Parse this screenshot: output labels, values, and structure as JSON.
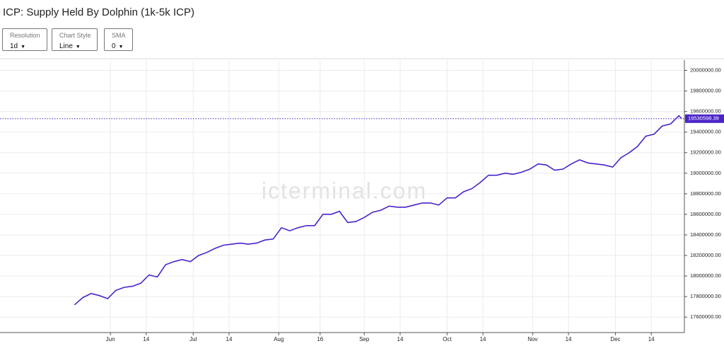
{
  "title": "ICP: Supply Held By Dolphin (1k-5k ICP)",
  "controls": [
    {
      "label": "Resolution",
      "value": "1d"
    },
    {
      "label": "Chart Style",
      "value": "Line"
    },
    {
      "label": "SMA",
      "value": "0"
    }
  ],
  "chart_data": {
    "type": "line",
    "watermark": "icterminal.com",
    "x": [
      "05-19",
      "05-22",
      "05-25",
      "05-28",
      "05-31",
      "06-03",
      "06-06",
      "06-09",
      "06-12",
      "06-15",
      "06-18",
      "06-21",
      "06-24",
      "06-27",
      "06-30",
      "07-03",
      "07-06",
      "07-09",
      "07-12",
      "07-15",
      "07-18",
      "07-21",
      "07-24",
      "07-27",
      "07-30",
      "08-02",
      "08-05",
      "08-08",
      "08-11",
      "08-14",
      "08-17",
      "08-20",
      "08-23",
      "08-26",
      "08-29",
      "09-01",
      "09-04",
      "09-07",
      "09-10",
      "09-13",
      "09-16",
      "09-19",
      "09-22",
      "09-25",
      "09-28",
      "10-01",
      "10-04",
      "10-07",
      "10-10",
      "10-13",
      "10-16",
      "10-19",
      "10-22",
      "10-25",
      "10-28",
      "10-31",
      "11-03",
      "11-06",
      "11-09",
      "11-12",
      "11-15",
      "11-18",
      "11-21",
      "11-24",
      "11-27",
      "11-30",
      "12-03",
      "12-06",
      "12-09",
      "12-12",
      "12-15",
      "12-18",
      "12-21",
      "12-24",
      "12-25"
    ],
    "series": [
      {
        "name": "Supply Held",
        "color": "#4a24c8",
        "values": [
          17720000,
          17790000,
          17830000,
          17810000,
          17780000,
          17860000,
          17890000,
          17900000,
          17930000,
          18010000,
          17990000,
          18110000,
          18140000,
          18160000,
          18140000,
          18200000,
          18230000,
          18270000,
          18300000,
          18310000,
          18320000,
          18310000,
          18320000,
          18350000,
          18360000,
          18470000,
          18440000,
          18470000,
          18490000,
          18490000,
          18600000,
          18600000,
          18630000,
          18520000,
          18530000,
          18570000,
          18620000,
          18640000,
          18680000,
          18670000,
          18670000,
          18690000,
          18710000,
          18710000,
          18690000,
          18760000,
          18760000,
          18820000,
          18850000,
          18910000,
          18980000,
          18980000,
          19000000,
          18990000,
          19010000,
          19040000,
          19090000,
          19080000,
          19030000,
          19040000,
          19090000,
          19130000,
          19100000,
          19090000,
          19080000,
          19060000,
          19150000,
          19200000,
          19260000,
          19360000,
          19380000,
          19460000,
          19480000,
          19560000,
          19530598.39
        ]
      }
    ],
    "xlim": [
      "04-22",
      "12-26"
    ],
    "xticks": [
      {
        "value": "06-01",
        "label": "Jun"
      },
      {
        "value": "06-14",
        "label": "14"
      },
      {
        "value": "07-01",
        "label": "Jul"
      },
      {
        "value": "07-14",
        "label": "14"
      },
      {
        "value": "08-01",
        "label": "Aug"
      },
      {
        "value": "08-16",
        "label": "16"
      },
      {
        "value": "09-01",
        "label": "Sep"
      },
      {
        "value": "09-14",
        "label": "14"
      },
      {
        "value": "10-01",
        "label": "Oct"
      },
      {
        "value": "10-14",
        "label": "14"
      },
      {
        "value": "11-01",
        "label": "Nov"
      },
      {
        "value": "11-14",
        "label": "14"
      },
      {
        "value": "12-01",
        "label": "Dec"
      },
      {
        "value": "12-14",
        "label": "14"
      }
    ],
    "ylim": [
      17450000,
      20100000
    ],
    "yticks": [
      {
        "value": 17600000,
        "label": "17600000.00"
      },
      {
        "value": 17800000,
        "label": "17800000.00"
      },
      {
        "value": 18000000,
        "label": "18000000.00"
      },
      {
        "value": 18200000,
        "label": "18200000.00"
      },
      {
        "value": 18400000,
        "label": "18400000.00"
      },
      {
        "value": 18600000,
        "label": "18600000.00"
      },
      {
        "value": 18800000,
        "label": "18800000.00"
      },
      {
        "value": 19000000,
        "label": "19000000.00"
      },
      {
        "value": 19200000,
        "label": "19200000.00"
      },
      {
        "value": 19400000,
        "label": "19400000.00"
      },
      {
        "value": 19600000,
        "label": "19600000.00"
      },
      {
        "value": 19800000,
        "label": "19800000.00"
      },
      {
        "value": 20000000,
        "label": "20000000.00"
      }
    ],
    "grid": true,
    "y_axis_side": "right"
  }
}
